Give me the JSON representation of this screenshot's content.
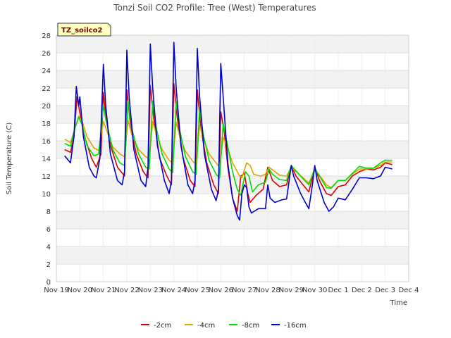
{
  "chart_data": {
    "type": "line",
    "title": "Tonzi Soil CO2 Profile: Tree (West) Temperatures",
    "xlabel": "Time",
    "ylabel": "Soil Temperature (C)",
    "badge": "TZ_soilco2",
    "ylim": [
      0,
      28
    ],
    "yticks": [
      0,
      2,
      4,
      6,
      8,
      10,
      12,
      14,
      16,
      18,
      20,
      22,
      24,
      26,
      28
    ],
    "xlim": [
      0,
      15
    ],
    "xticks": [
      {
        "x": 0,
        "label": "Nov 19"
      },
      {
        "x": 1,
        "label": "Nov 20"
      },
      {
        "x": 2,
        "label": "Nov 21"
      },
      {
        "x": 3,
        "label": "Nov 22"
      },
      {
        "x": 4,
        "label": "Nov 23"
      },
      {
        "x": 5,
        "label": "Nov 24"
      },
      {
        "x": 6,
        "label": "Nov 25"
      },
      {
        "x": 7,
        "label": "Nov 26"
      },
      {
        "x": 8,
        "label": "Nov 27"
      },
      {
        "x": 9,
        "label": "Nov 28"
      },
      {
        "x": 10,
        "label": "Nov 29"
      },
      {
        "x": 11,
        "label": "Nov 30"
      },
      {
        "x": 12,
        "label": "Dec 1"
      },
      {
        "x": 13,
        "label": "Dec 2"
      },
      {
        "x": 14,
        "label": "Dec 3"
      },
      {
        "x": 15,
        "label": "Dec 4"
      }
    ],
    "legend_position": "bottom-center",
    "series": [
      {
        "name": "-2cm",
        "color": "#dd0000",
        "points": [
          [
            0.35,
            15.0
          ],
          [
            0.6,
            14.7
          ],
          [
            0.75,
            16.5
          ],
          [
            0.88,
            21.0
          ],
          [
            1.0,
            19.2
          ],
          [
            1.2,
            16.5
          ],
          [
            1.5,
            14.0
          ],
          [
            1.7,
            13.0
          ],
          [
            1.9,
            14.5
          ],
          [
            2.0,
            21.5
          ],
          [
            2.1,
            19.0
          ],
          [
            2.3,
            15.5
          ],
          [
            2.6,
            13.0
          ],
          [
            2.9,
            12.0
          ],
          [
            3.0,
            21.8
          ],
          [
            3.15,
            18.0
          ],
          [
            3.4,
            14.5
          ],
          [
            3.7,
            12.5
          ],
          [
            3.9,
            11.8
          ],
          [
            4.0,
            22.3
          ],
          [
            4.15,
            18.5
          ],
          [
            4.4,
            14.0
          ],
          [
            4.7,
            12.0
          ],
          [
            4.9,
            11.0
          ],
          [
            5.0,
            22.5
          ],
          [
            5.15,
            18.5
          ],
          [
            5.4,
            14.0
          ],
          [
            5.7,
            11.5
          ],
          [
            5.9,
            10.8
          ],
          [
            6.0,
            21.8
          ],
          [
            6.15,
            17.5
          ],
          [
            6.4,
            13.5
          ],
          [
            6.7,
            11.0
          ],
          [
            6.9,
            10.0
          ],
          [
            7.0,
            19.3
          ],
          [
            7.15,
            17.0
          ],
          [
            7.3,
            13.0
          ],
          [
            7.5,
            9.5
          ],
          [
            7.7,
            8.0
          ],
          [
            7.85,
            12.0
          ],
          [
            8.0,
            12.3
          ],
          [
            8.15,
            10.0
          ],
          [
            8.25,
            9.0
          ],
          [
            8.5,
            9.8
          ],
          [
            8.8,
            10.5
          ],
          [
            9.0,
            13.0
          ],
          [
            9.2,
            11.5
          ],
          [
            9.5,
            10.8
          ],
          [
            9.8,
            11.0
          ],
          [
            10.0,
            13.2
          ],
          [
            10.2,
            12.0
          ],
          [
            10.5,
            11.0
          ],
          [
            10.75,
            10.2
          ],
          [
            11.0,
            13.0
          ],
          [
            11.2,
            11.5
          ],
          [
            11.5,
            10.0
          ],
          [
            11.7,
            9.8
          ],
          [
            12.0,
            10.8
          ],
          [
            12.3,
            11.0
          ],
          [
            12.6,
            12.0
          ],
          [
            12.9,
            12.5
          ],
          [
            13.2,
            12.8
          ],
          [
            13.5,
            12.7
          ],
          [
            13.8,
            13.0
          ],
          [
            14.0,
            13.5
          ],
          [
            14.3,
            13.3
          ]
        ]
      },
      {
        "name": "-4cm",
        "color": "#e8a000",
        "points": [
          [
            0.35,
            16.2
          ],
          [
            0.6,
            15.8
          ],
          [
            0.8,
            17.5
          ],
          [
            0.95,
            18.8
          ],
          [
            1.1,
            18.2
          ],
          [
            1.3,
            16.5
          ],
          [
            1.6,
            15.2
          ],
          [
            1.8,
            14.9
          ],
          [
            2.0,
            18.2
          ],
          [
            2.1,
            17.5
          ],
          [
            2.4,
            15.3
          ],
          [
            2.7,
            14.5
          ],
          [
            2.9,
            14.2
          ],
          [
            3.05,
            18.3
          ],
          [
            3.2,
            16.8
          ],
          [
            3.5,
            15.0
          ],
          [
            3.8,
            14.2
          ],
          [
            3.95,
            14.0
          ],
          [
            4.1,
            18.2
          ],
          [
            4.25,
            16.8
          ],
          [
            4.5,
            15.0
          ],
          [
            4.8,
            13.8
          ],
          [
            4.95,
            13.5
          ],
          [
            5.1,
            18.1
          ],
          [
            5.25,
            16.5
          ],
          [
            5.5,
            14.8
          ],
          [
            5.8,
            13.7
          ],
          [
            5.95,
            13.3
          ],
          [
            6.1,
            17.8
          ],
          [
            6.25,
            16.2
          ],
          [
            6.5,
            14.5
          ],
          [
            6.8,
            13.5
          ],
          [
            6.95,
            13.0
          ],
          [
            7.1,
            16.4
          ],
          [
            7.25,
            15.5
          ],
          [
            7.5,
            13.5
          ],
          [
            7.8,
            12.0
          ],
          [
            7.9,
            11.8
          ],
          [
            8.1,
            13.5
          ],
          [
            8.25,
            13.2
          ],
          [
            8.4,
            12.2
          ],
          [
            8.7,
            12.0
          ],
          [
            8.9,
            12.2
          ],
          [
            9.05,
            13.0
          ],
          [
            9.2,
            12.7
          ],
          [
            9.5,
            12.1
          ],
          [
            9.8,
            12.0
          ],
          [
            10.0,
            13.0
          ],
          [
            10.2,
            12.5
          ],
          [
            10.5,
            11.8
          ],
          [
            10.75,
            11.2
          ],
          [
            11.0,
            12.7
          ],
          [
            11.2,
            12.1
          ],
          [
            11.5,
            11.0
          ],
          [
            11.7,
            10.7
          ],
          [
            12.0,
            11.5
          ],
          [
            12.3,
            11.5
          ],
          [
            12.6,
            12.2
          ],
          [
            12.9,
            12.8
          ],
          [
            13.2,
            12.8
          ],
          [
            13.5,
            12.9
          ],
          [
            13.8,
            13.2
          ],
          [
            14.0,
            13.6
          ],
          [
            14.3,
            13.6
          ]
        ]
      },
      {
        "name": "-8cm",
        "color": "#00dd00",
        "points": [
          [
            0.35,
            15.7
          ],
          [
            0.6,
            15.4
          ],
          [
            0.8,
            17.5
          ],
          [
            0.95,
            18.7
          ],
          [
            1.1,
            17.8
          ],
          [
            1.3,
            15.5
          ],
          [
            1.6,
            14.3
          ],
          [
            1.8,
            14.5
          ],
          [
            2.0,
            20.0
          ],
          [
            2.1,
            18.5
          ],
          [
            2.4,
            15.0
          ],
          [
            2.7,
            13.5
          ],
          [
            2.9,
            13.2
          ],
          [
            3.05,
            20.5
          ],
          [
            3.2,
            17.5
          ],
          [
            3.5,
            14.5
          ],
          [
            3.8,
            13.0
          ],
          [
            3.95,
            12.8
          ],
          [
            4.1,
            20.5
          ],
          [
            4.25,
            17.5
          ],
          [
            4.5,
            14.5
          ],
          [
            4.8,
            12.8
          ],
          [
            4.95,
            12.4
          ],
          [
            5.1,
            20.5
          ],
          [
            5.25,
            17.2
          ],
          [
            5.5,
            14.2
          ],
          [
            5.8,
            12.5
          ],
          [
            5.95,
            12.2
          ],
          [
            6.1,
            19.8
          ],
          [
            6.25,
            16.8
          ],
          [
            6.5,
            13.8
          ],
          [
            6.8,
            12.2
          ],
          [
            6.95,
            11.8
          ],
          [
            7.1,
            18.0
          ],
          [
            7.25,
            16.0
          ],
          [
            7.5,
            12.5
          ],
          [
            7.7,
            10.5
          ],
          [
            7.85,
            9.8
          ],
          [
            8.05,
            12.5
          ],
          [
            8.2,
            12.0
          ],
          [
            8.35,
            10.2
          ],
          [
            8.6,
            11.0
          ],
          [
            8.9,
            11.3
          ],
          [
            9.05,
            12.8
          ],
          [
            9.2,
            12.2
          ],
          [
            9.5,
            11.6
          ],
          [
            9.8,
            11.5
          ],
          [
            10.0,
            13.2
          ],
          [
            10.2,
            12.6
          ],
          [
            10.5,
            11.7
          ],
          [
            10.75,
            11.0
          ],
          [
            11.0,
            12.9
          ],
          [
            11.2,
            12.0
          ],
          [
            11.5,
            10.7
          ],
          [
            11.7,
            10.6
          ],
          [
            12.0,
            11.5
          ],
          [
            12.3,
            11.5
          ],
          [
            12.6,
            12.3
          ],
          [
            12.9,
            13.1
          ],
          [
            13.2,
            12.9
          ],
          [
            13.5,
            12.9
          ],
          [
            13.8,
            13.5
          ],
          [
            14.0,
            13.8
          ],
          [
            14.3,
            13.8
          ]
        ]
      },
      {
        "name": "-16cm",
        "color": "#0000cc",
        "points": [
          [
            0.35,
            14.3
          ],
          [
            0.6,
            13.5
          ],
          [
            0.75,
            16.5
          ],
          [
            0.85,
            22.2
          ],
          [
            0.95,
            20.0
          ],
          [
            1.0,
            21.0
          ],
          [
            1.15,
            16.5
          ],
          [
            1.4,
            13.0
          ],
          [
            1.6,
            12.0
          ],
          [
            1.7,
            11.8
          ],
          [
            1.85,
            14.0
          ],
          [
            2.0,
            24.7
          ],
          [
            2.1,
            20.0
          ],
          [
            2.3,
            14.5
          ],
          [
            2.6,
            11.5
          ],
          [
            2.8,
            11.0
          ],
          [
            2.9,
            12.5
          ],
          [
            3.0,
            26.3
          ],
          [
            3.1,
            21.0
          ],
          [
            3.3,
            15.0
          ],
          [
            3.6,
            11.5
          ],
          [
            3.8,
            10.8
          ],
          [
            3.9,
            13.0
          ],
          [
            4.0,
            27.0
          ],
          [
            4.1,
            22.0
          ],
          [
            4.3,
            15.5
          ],
          [
            4.6,
            11.5
          ],
          [
            4.8,
            10.0
          ],
          [
            4.9,
            11.5
          ],
          [
            5.0,
            27.2
          ],
          [
            5.1,
            22.0
          ],
          [
            5.3,
            15.5
          ],
          [
            5.6,
            11.0
          ],
          [
            5.8,
            10.0
          ],
          [
            5.9,
            11.5
          ],
          [
            6.0,
            26.5
          ],
          [
            6.1,
            21.0
          ],
          [
            6.3,
            14.5
          ],
          [
            6.6,
            10.5
          ],
          [
            6.8,
            9.2
          ],
          [
            6.9,
            10.5
          ],
          [
            7.0,
            24.8
          ],
          [
            7.1,
            21.0
          ],
          [
            7.3,
            13.5
          ],
          [
            7.5,
            9.5
          ],
          [
            7.7,
            7.5
          ],
          [
            7.8,
            7.0
          ],
          [
            7.9,
            10.0
          ],
          [
            8.0,
            11.0
          ],
          [
            8.1,
            10.7
          ],
          [
            8.2,
            8.5
          ],
          [
            8.3,
            7.8
          ],
          [
            8.6,
            8.3
          ],
          [
            8.9,
            8.3
          ],
          [
            9.0,
            11.0
          ],
          [
            9.1,
            9.5
          ],
          [
            9.3,
            9.0
          ],
          [
            9.6,
            9.3
          ],
          [
            9.8,
            9.4
          ],
          [
            10.0,
            13.2
          ],
          [
            10.1,
            12.0
          ],
          [
            10.4,
            10.0
          ],
          [
            10.6,
            9.0
          ],
          [
            10.75,
            8.3
          ],
          [
            10.9,
            11.0
          ],
          [
            11.0,
            13.2
          ],
          [
            11.1,
            11.5
          ],
          [
            11.4,
            9.0
          ],
          [
            11.6,
            8.0
          ],
          [
            11.8,
            8.5
          ],
          [
            12.0,
            9.5
          ],
          [
            12.3,
            9.3
          ],
          [
            12.6,
            10.5
          ],
          [
            12.9,
            11.8
          ],
          [
            13.2,
            11.8
          ],
          [
            13.5,
            11.7
          ],
          [
            13.8,
            12.0
          ],
          [
            14.0,
            13.0
          ],
          [
            14.3,
            12.8
          ]
        ]
      }
    ]
  }
}
